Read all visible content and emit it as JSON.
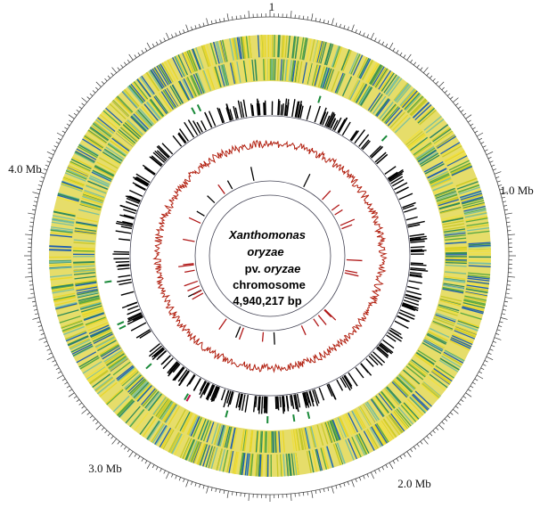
{
  "scale_labels": {
    "start": "1",
    "mb1": "1.0 Mb",
    "mb2": "2.0 Mb",
    "mb3": "3.0 Mb",
    "mb4": "4.0 Mb"
  },
  "center": {
    "genus": "Xanthomonas",
    "species": "oryzae",
    "pathovar_prefix": "pv.",
    "pathovar": "oryzae",
    "kind": "chromosome",
    "size": "4,940,217 bp"
  }
}
